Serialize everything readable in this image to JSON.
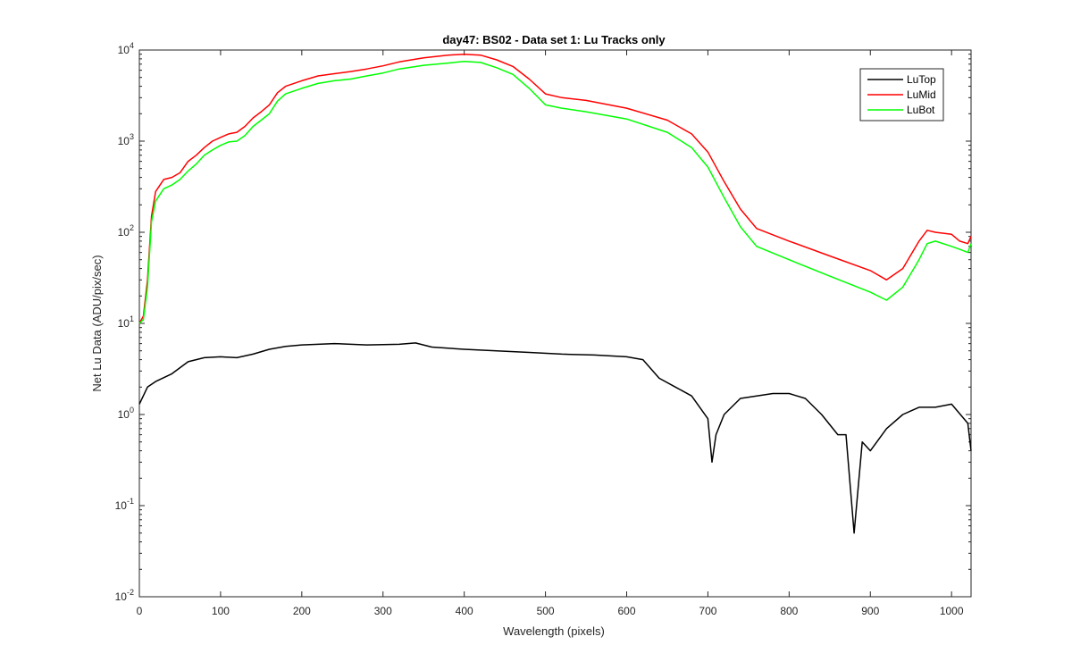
{
  "chart_data": {
    "type": "line",
    "title": "day47: BS02 - Data set 1: Lu Tracks only",
    "xlabel": "Wavelength (pixels)",
    "ylabel": "Net Lu Data (ADU/pix/sec)",
    "xlim": [
      0,
      1024
    ],
    "ylim": [
      0.01,
      10000
    ],
    "yscale": "log",
    "grid": false,
    "legend_position": "top-right",
    "x_ticks": [
      0,
      100,
      200,
      300,
      400,
      500,
      600,
      700,
      800,
      900,
      1000
    ],
    "x_tick_labels": [
      "0",
      "100",
      "200",
      "300",
      "400",
      "500",
      "600",
      "700",
      "800",
      "900",
      "1000"
    ],
    "y_ticks": [
      0.01,
      0.1,
      1,
      10,
      100,
      1000,
      10000
    ],
    "y_tick_labels": [
      {
        "base": "10",
        "exp": "-2"
      },
      {
        "base": "10",
        "exp": "-1"
      },
      {
        "base": "10",
        "exp": "0"
      },
      {
        "base": "10",
        "exp": "1"
      },
      {
        "base": "10",
        "exp": "2"
      },
      {
        "base": "10",
        "exp": "3"
      },
      {
        "base": "10",
        "exp": "4"
      }
    ],
    "series": [
      {
        "name": "LuTop",
        "color": "#000000",
        "x": [
          0,
          10,
          20,
          40,
          60,
          80,
          100,
          120,
          140,
          160,
          180,
          200,
          240,
          280,
          320,
          340,
          360,
          400,
          440,
          480,
          520,
          560,
          600,
          620,
          640,
          660,
          680,
          700,
          705,
          710,
          720,
          740,
          760,
          780,
          800,
          820,
          840,
          860,
          870,
          880,
          890,
          900,
          920,
          940,
          960,
          980,
          1000,
          1020,
          1024
        ],
        "y": [
          1.3,
          2.0,
          2.3,
          2.8,
          3.8,
          4.2,
          4.3,
          4.2,
          4.6,
          5.2,
          5.6,
          5.8,
          6.0,
          5.8,
          5.9,
          6.1,
          5.5,
          5.2,
          5.0,
          4.8,
          4.6,
          4.5,
          4.3,
          4.0,
          2.5,
          2.0,
          1.6,
          0.9,
          0.3,
          0.6,
          1.0,
          1.5,
          1.6,
          1.7,
          1.7,
          1.5,
          1.0,
          0.6,
          0.6,
          0.05,
          0.5,
          0.4,
          0.7,
          1.0,
          1.2,
          1.2,
          1.3,
          0.8,
          0.4
        ]
      },
      {
        "name": "LuMid",
        "color": "#ff0000",
        "x": [
          0,
          5,
          10,
          15,
          20,
          30,
          40,
          50,
          60,
          70,
          80,
          90,
          100,
          110,
          120,
          130,
          140,
          150,
          160,
          170,
          180,
          200,
          220,
          240,
          260,
          280,
          300,
          320,
          350,
          380,
          400,
          420,
          440,
          460,
          480,
          500,
          520,
          550,
          600,
          650,
          680,
          700,
          720,
          740,
          760,
          800,
          850,
          900,
          920,
          940,
          960,
          970,
          980,
          1000,
          1010,
          1020,
          1024
        ],
        "y": [
          10,
          12,
          30,
          150,
          280,
          380,
          400,
          450,
          600,
          700,
          850,
          1000,
          1100,
          1200,
          1250,
          1450,
          1800,
          2100,
          2500,
          3400,
          4000,
          4600,
          5200,
          5500,
          5800,
          6200,
          6700,
          7400,
          8200,
          8800,
          9000,
          8800,
          7800,
          6600,
          4800,
          3300,
          3000,
          2800,
          2300,
          1700,
          1200,
          760,
          360,
          180,
          110,
          80,
          55,
          38,
          30,
          40,
          80,
          105,
          100,
          95,
          80,
          75,
          90
        ]
      },
      {
        "name": "LuBot",
        "color": "#00ff00",
        "x": [
          0,
          5,
          10,
          15,
          20,
          30,
          40,
          50,
          60,
          70,
          80,
          90,
          100,
          110,
          120,
          130,
          140,
          150,
          160,
          170,
          180,
          200,
          220,
          240,
          260,
          280,
          300,
          320,
          350,
          380,
          400,
          420,
          440,
          460,
          480,
          500,
          520,
          550,
          600,
          650,
          680,
          700,
          720,
          740,
          760,
          800,
          850,
          900,
          920,
          940,
          960,
          970,
          980,
          1000,
          1010,
          1020,
          1024
        ],
        "y": [
          10,
          11,
          25,
          130,
          220,
          300,
          330,
          380,
          470,
          560,
          700,
          800,
          900,
          980,
          1000,
          1150,
          1450,
          1700,
          2000,
          2750,
          3300,
          3800,
          4300,
          4600,
          4800,
          5200,
          5600,
          6200,
          6800,
          7200,
          7500,
          7300,
          6400,
          5400,
          3800,
          2500,
          2300,
          2100,
          1750,
          1250,
          850,
          520,
          240,
          115,
          70,
          50,
          33,
          22,
          18,
          25,
          50,
          75,
          80,
          70,
          65,
          60,
          75
        ]
      }
    ]
  }
}
